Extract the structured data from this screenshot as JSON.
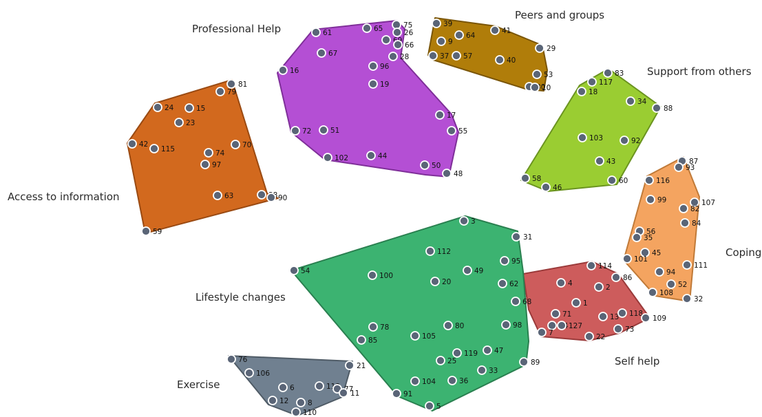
{
  "clusters": [
    {
      "key": "access",
      "label": "Access to information",
      "color": "#d2691e",
      "stroke": "#9a4a12",
      "points": [
        [
          "81",
          336,
          122
        ],
        [
          "79",
          320,
          133
        ],
        [
          "24",
          229,
          156
        ],
        [
          "15",
          275,
          157
        ],
        [
          "23",
          260,
          178
        ],
        [
          "42",
          192,
          209
        ],
        [
          "115",
          224,
          216
        ],
        [
          "70",
          342,
          210
        ],
        [
          "74",
          303,
          222
        ],
        [
          "97",
          298,
          239
        ],
        [
          "63",
          316,
          284
        ],
        [
          "38",
          380,
          283
        ],
        [
          "90",
          394,
          287
        ],
        [
          "59",
          212,
          336
        ]
      ]
    },
    {
      "key": "professional",
      "label": "Professional Help",
      "color": "#b44fd4",
      "stroke": "#7f2f99",
      "points": [
        [
          "75",
          576,
          36
        ],
        [
          "65",
          533,
          41
        ],
        [
          "26",
          577,
          47
        ],
        [
          "61",
          459,
          47
        ],
        [
          "69",
          561,
          58
        ],
        [
          "66",
          578,
          65
        ],
        [
          "67",
          467,
          77
        ],
        [
          "28",
          571,
          82
        ],
        [
          "16",
          411,
          102
        ],
        [
          "96",
          542,
          96
        ],
        [
          "19",
          542,
          122
        ],
        [
          "17",
          639,
          167
        ],
        [
          "55",
          656,
          190
        ],
        [
          "72",
          429,
          190
        ],
        [
          "51",
          470,
          189
        ],
        [
          "102",
          476,
          229
        ],
        [
          "44",
          539,
          226
        ],
        [
          "50",
          617,
          240
        ],
        [
          "48",
          649,
          252
        ]
      ]
    },
    {
      "key": "peers",
      "label": "Peers and groups",
      "color": "#b07d0a",
      "stroke": "#7a5506",
      "points": [
        [
          "39",
          634,
          34
        ],
        [
          "41",
          719,
          44
        ],
        [
          "64",
          667,
          51
        ],
        [
          "9",
          641,
          60
        ],
        [
          "29",
          784,
          70
        ],
        [
          "37",
          629,
          81
        ],
        [
          "57",
          663,
          81
        ],
        [
          "40",
          726,
          87
        ],
        [
          "53",
          780,
          108
        ],
        [
          "30",
          769,
          126
        ],
        [
          "10",
          777,
          127
        ]
      ]
    },
    {
      "key": "support",
      "label": "Support from others",
      "color": "#9acd32",
      "stroke": "#6b9420",
      "points": [
        [
          "83",
          883,
          106
        ],
        [
          "117",
          860,
          119
        ],
        [
          "18",
          845,
          133
        ],
        [
          "34",
          916,
          147
        ],
        [
          "88",
          954,
          157
        ],
        [
          "103",
          846,
          200
        ],
        [
          "92",
          907,
          204
        ],
        [
          "43",
          871,
          234
        ],
        [
          "60",
          889,
          262
        ],
        [
          "58",
          763,
          259
        ],
        [
          "46",
          793,
          272
        ]
      ]
    },
    {
      "key": "coping",
      "label": "Coping",
      "color": "#f4a460",
      "stroke": "#c07a38",
      "points": [
        [
          "87",
          991,
          234
        ],
        [
          "93",
          986,
          243
        ],
        [
          "116",
          943,
          262
        ],
        [
          "107",
          1009,
          294
        ],
        [
          "99",
          945,
          290
        ],
        [
          "82",
          993,
          303
        ],
        [
          "84",
          995,
          324
        ],
        [
          "56",
          929,
          336
        ],
        [
          "35",
          925,
          345
        ],
        [
          "45",
          937,
          367
        ],
        [
          "101",
          911,
          376
        ],
        [
          "111",
          998,
          385
        ],
        [
          "94",
          958,
          395
        ],
        [
          "52",
          975,
          413
        ],
        [
          "108",
          948,
          425
        ],
        [
          "32",
          998,
          434
        ]
      ]
    },
    {
      "key": "self",
      "label": "Self help",
      "color": "#cd5c5c",
      "stroke": "#9a3a3a",
      "points": [
        [
          "114",
          859,
          386
        ],
        [
          "86",
          895,
          403
        ],
        [
          "4",
          815,
          411
        ],
        [
          "2",
          870,
          417
        ],
        [
          "1",
          837,
          440
        ],
        [
          "71",
          807,
          456
        ],
        [
          "13",
          876,
          460
        ],
        [
          "118",
          904,
          455
        ],
        [
          "109",
          938,
          462
        ],
        [
          "14",
          802,
          473
        ],
        [
          "127",
          816,
          473
        ],
        [
          "73",
          898,
          478
        ],
        [
          "7",
          787,
          483
        ],
        [
          "22",
          856,
          489
        ]
      ]
    },
    {
      "key": "lifestyle",
      "label": "Lifestyle changes",
      "color": "#3cb371",
      "stroke": "#2a8050",
      "points": [
        [
          "3",
          674,
          321
        ],
        [
          "31",
          750,
          344
        ],
        [
          "112",
          625,
          365
        ],
        [
          "54",
          427,
          393
        ],
        [
          "100",
          541,
          400
        ],
        [
          "49",
          679,
          393
        ],
        [
          "95",
          733,
          379
        ],
        [
          "20",
          632,
          409
        ],
        [
          "62",
          730,
          412
        ],
        [
          "68",
          749,
          438
        ],
        [
          "78",
          542,
          475
        ],
        [
          "80",
          651,
          473
        ],
        [
          "98",
          735,
          472
        ],
        [
          "85",
          525,
          494
        ],
        [
          "105",
          603,
          488
        ],
        [
          "119",
          664,
          513
        ],
        [
          "47",
          708,
          509
        ],
        [
          "25",
          640,
          524
        ],
        [
          "33",
          700,
          538
        ],
        [
          "89",
          761,
          526
        ],
        [
          "104",
          603,
          554
        ],
        [
          "36",
          657,
          553
        ],
        [
          "91",
          576,
          572
        ],
        [
          "5",
          624,
          590
        ]
      ]
    },
    {
      "key": "exercise",
      "label": "Exercise",
      "color": "#708090",
      "stroke": "#4f5b66",
      "points": [
        [
          "76",
          336,
          522
        ],
        [
          "21",
          508,
          531
        ],
        [
          "106",
          362,
          542
        ],
        [
          "6",
          411,
          563
        ],
        [
          "113",
          464,
          561
        ],
        [
          "77",
          490,
          565
        ],
        [
          "11",
          499,
          571
        ],
        [
          "12",
          396,
          582
        ],
        [
          "8",
          437,
          585
        ],
        [
          "110",
          430,
          599
        ]
      ]
    }
  ]
}
